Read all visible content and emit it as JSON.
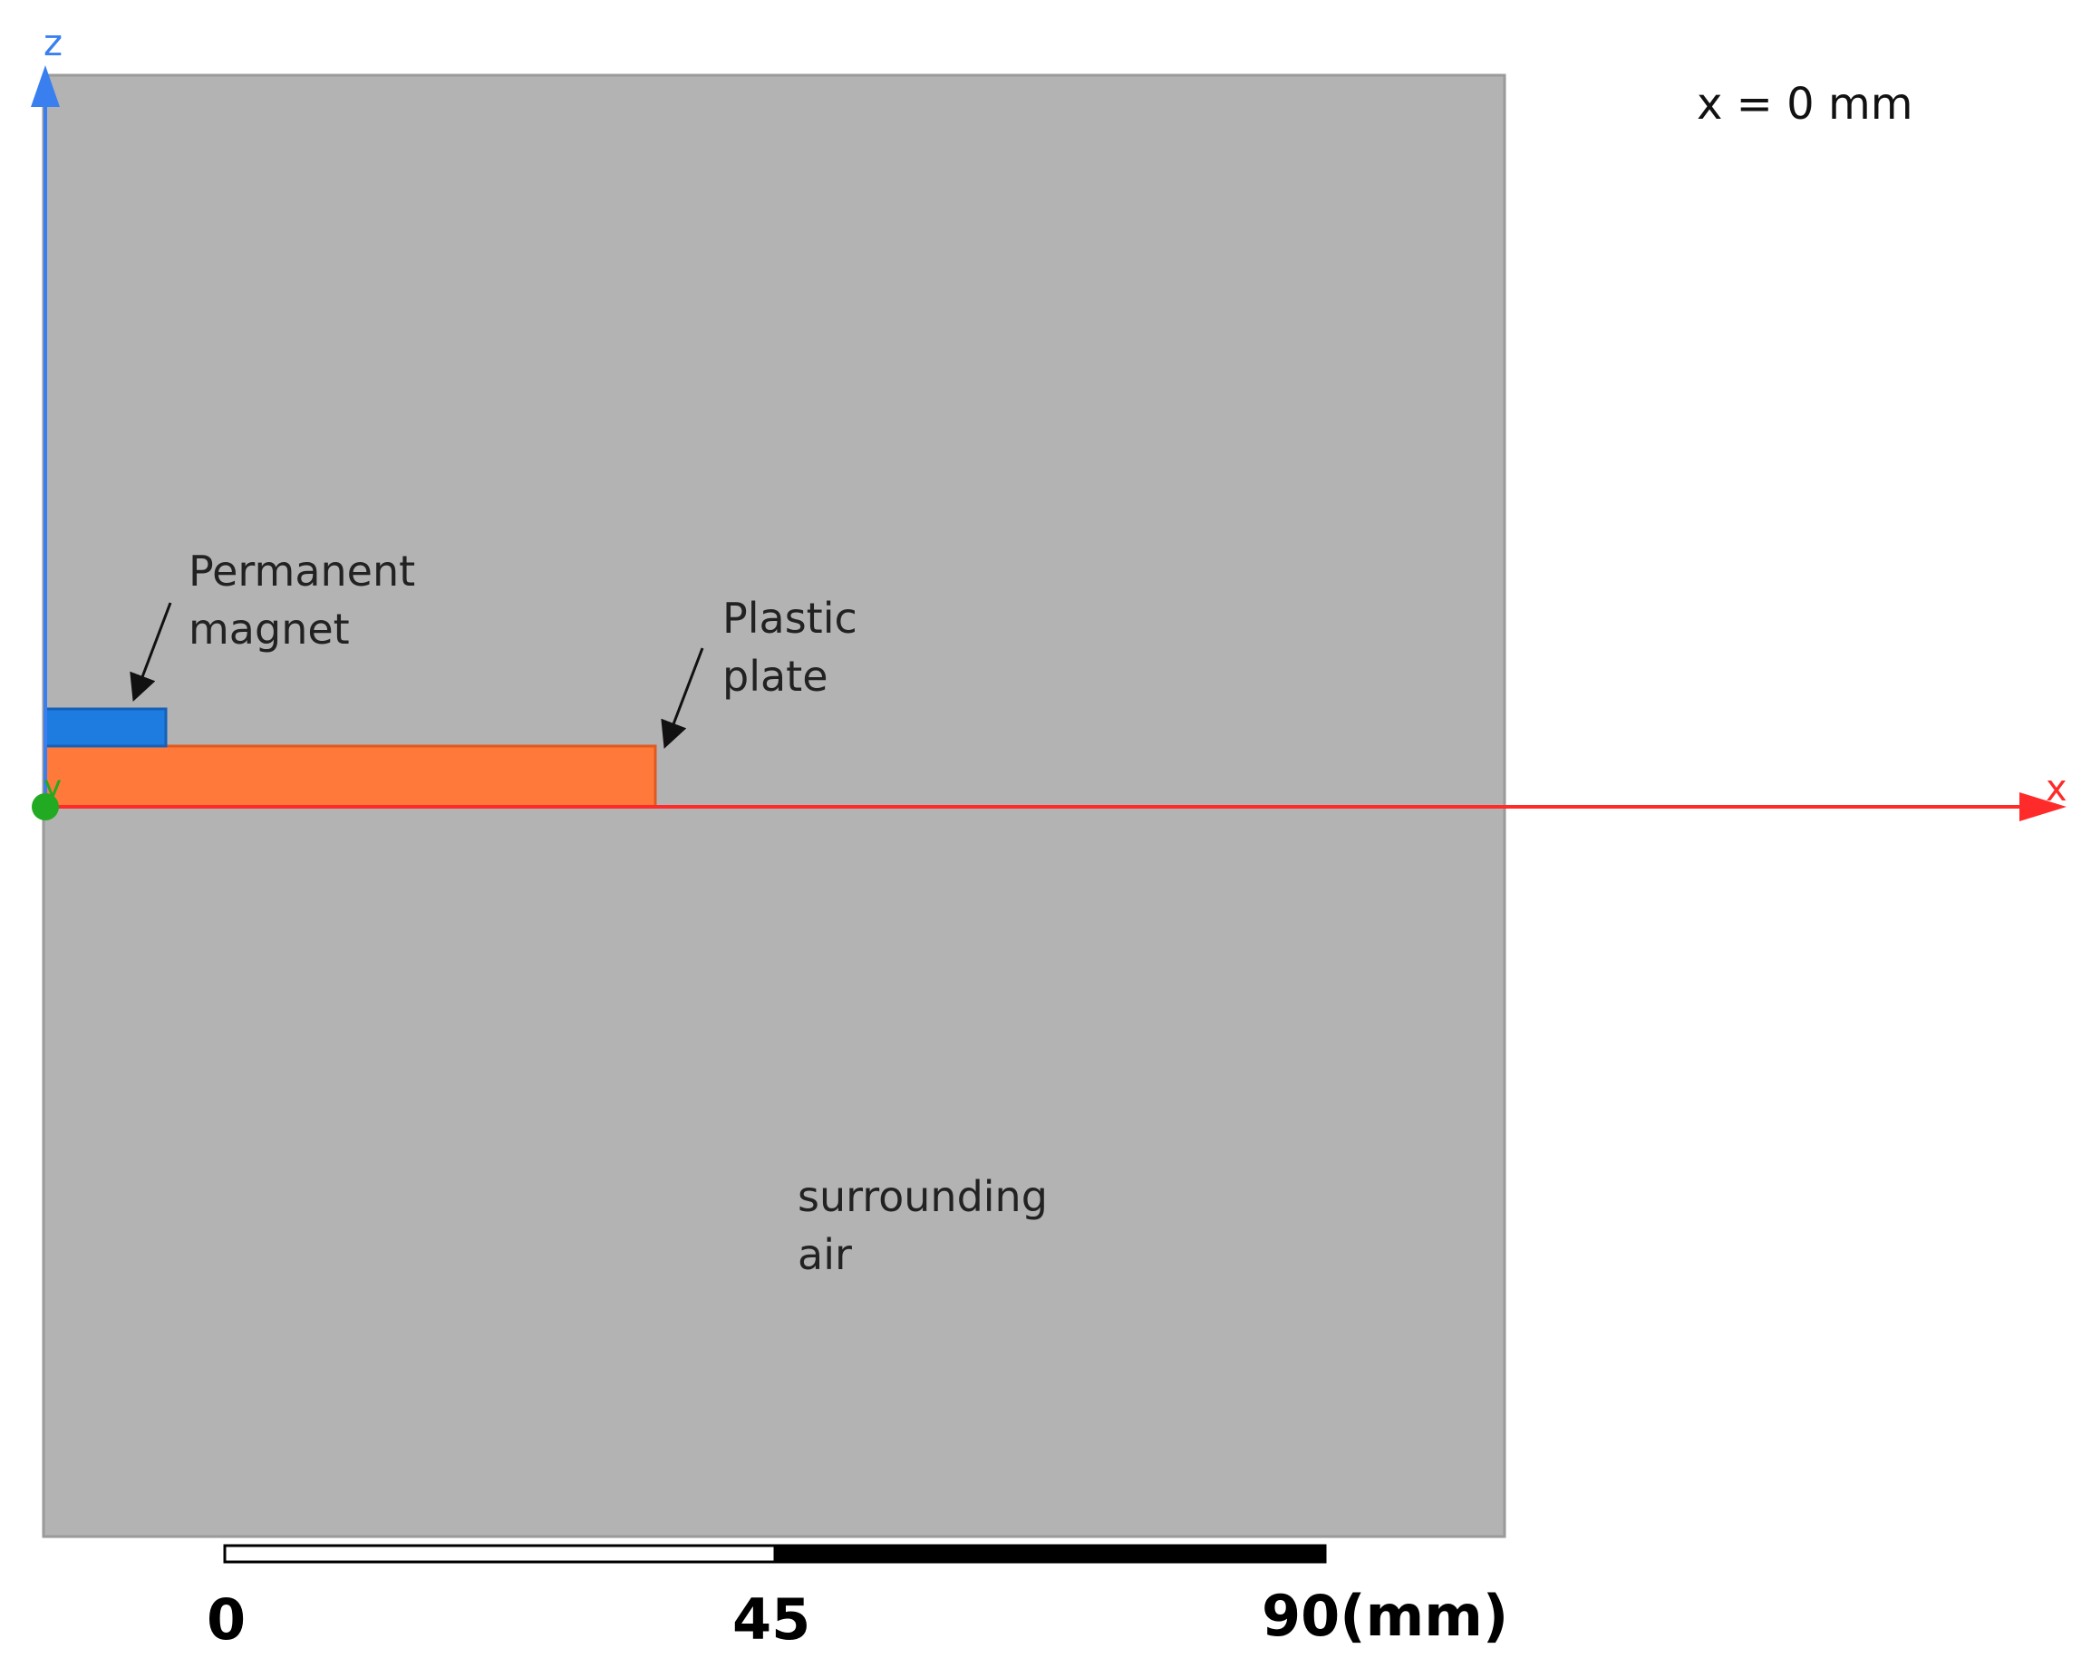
{
  "view": {
    "section_note": "x = 0 mm"
  },
  "axes": {
    "x_label": "x",
    "y_label": "y",
    "z_label": "z",
    "x_color": "#ff2a2a",
    "y_color": "#22aa22",
    "z_color": "#3a7ff0"
  },
  "regions": {
    "surrounding_air": {
      "line1": "surrounding",
      "line2": "air",
      "color": "#b3b3b3"
    },
    "plastic_plate": {
      "line1": "Plastic",
      "line2": "plate",
      "color": "#ff7a3a"
    },
    "permanent_magnet": {
      "line1": "Permanent",
      "line2": "magnet",
      "color": "#1e7be0"
    }
  },
  "scale_bar": {
    "tick_0": "0",
    "tick_45": "45",
    "tick_90": "90(mm)"
  }
}
